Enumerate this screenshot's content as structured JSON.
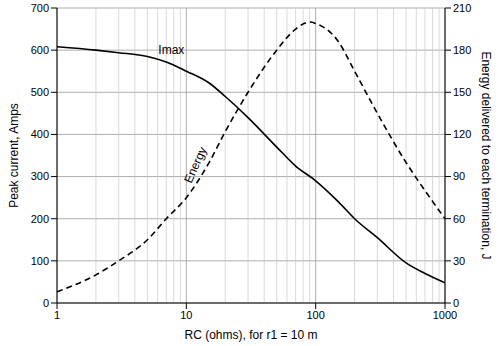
{
  "chart_data": {
    "type": "line",
    "x_label": "RC (ohms), for r1 = 10 m",
    "y_label": "Peak current, Amps",
    "y2_label": "Energy delivered to each termination, J",
    "log": "x",
    "grid": true,
    "xlim": [
      1,
      1000
    ],
    "xticks": [
      1,
      10,
      100,
      1000
    ],
    "ylim": [
      0,
      700
    ],
    "yticks": [
      0,
      100,
      200,
      300,
      400,
      500,
      600,
      700
    ],
    "y2lim": [
      0,
      210
    ],
    "y2ticks": [
      0,
      30,
      60,
      90,
      120,
      150,
      180,
      210
    ],
    "series": [
      {
        "name": "Imax",
        "color": "#000000",
        "line_style": "solid",
        "x": [
          1,
          2,
          3,
          5,
          7,
          10,
          15,
          20,
          30,
          50,
          70,
          100,
          150,
          200,
          300,
          500,
          700,
          1000
        ],
        "values": [
          608,
          600,
          594,
          585,
          572,
          550,
          522,
          490,
          440,
          370,
          325,
          290,
          240,
          200,
          155,
          95,
          70,
          48
        ]
      },
      {
        "name": "Energy",
        "color": "#000000",
        "line_style": "dashed",
        "axis": "y2",
        "x": [
          1,
          2,
          3,
          5,
          7,
          10,
          15,
          20,
          30,
          50,
          70,
          90,
          100,
          150,
          200,
          300,
          500,
          700,
          1000
        ],
        "values": [
          8,
          20,
          30,
          45,
          60,
          75,
          100,
          122,
          150,
          180,
          195,
          200,
          199,
          186,
          165,
          135,
          100,
          80,
          60
        ]
      }
    ]
  }
}
